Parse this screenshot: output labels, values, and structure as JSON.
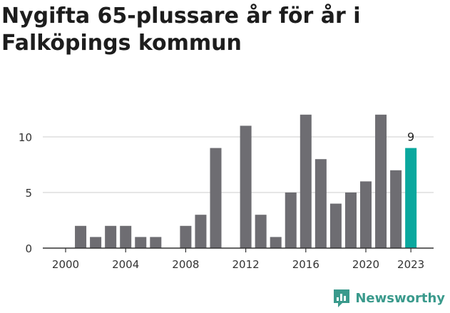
{
  "title": "Nygifta 65-plussare år för år i Falköpings kommun",
  "brand": {
    "name": "Newsworthy",
    "color": "#3a9a8c"
  },
  "colors": {
    "bar": "#6e6d72",
    "highlight": "#0aa89e",
    "grid": "#dddddd",
    "axis": "#333333"
  },
  "chart_data": {
    "type": "bar",
    "x": [
      2000,
      2001,
      2002,
      2003,
      2004,
      2005,
      2006,
      2007,
      2008,
      2009,
      2010,
      2011,
      2012,
      2013,
      2014,
      2015,
      2016,
      2017,
      2018,
      2019,
      2020,
      2021,
      2022,
      2023
    ],
    "values": [
      0,
      2,
      1,
      2,
      2,
      1,
      1,
      0,
      2,
      3,
      9,
      0,
      11,
      3,
      1,
      5,
      12,
      8,
      4,
      5,
      6,
      12,
      7,
      9
    ],
    "x_ticks": [
      "2000",
      "2004",
      "2008",
      "2012",
      "2016",
      "2020",
      "2023"
    ],
    "y_ticks": [
      "0",
      "5",
      "10"
    ],
    "ylim": [
      0,
      13
    ],
    "highlight_index": 23,
    "highlight_label": "9",
    "grid": true
  }
}
